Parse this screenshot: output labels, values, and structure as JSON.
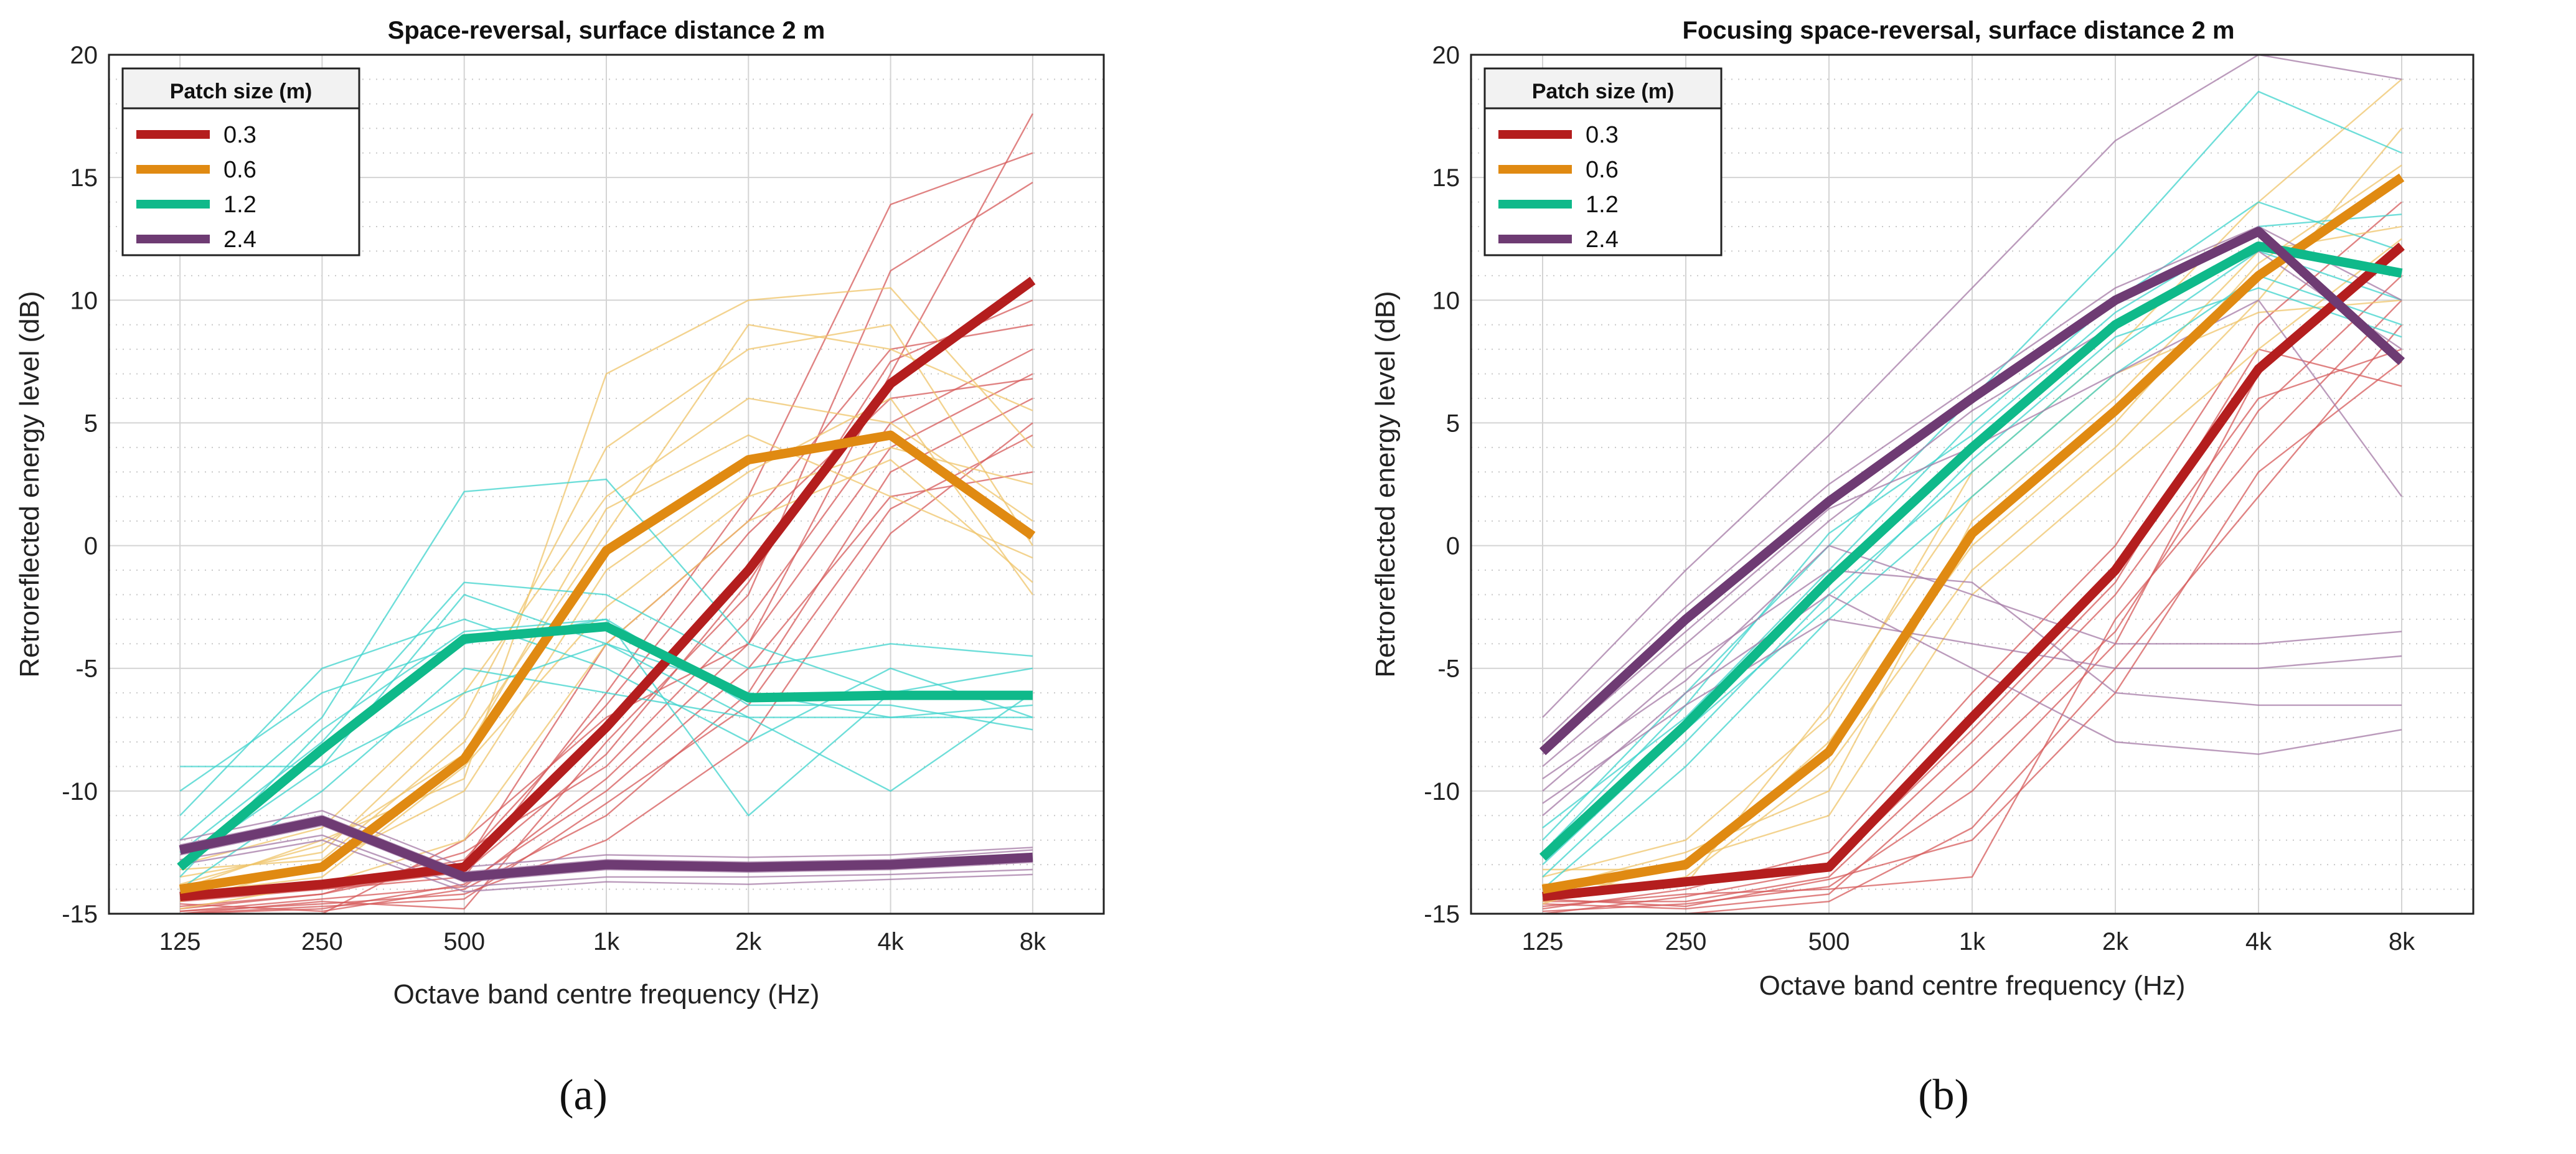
{
  "chart_data": [
    {
      "type": "line",
      "panel_label": "(a)",
      "title": "Space-reversal, surface distance 2 m",
      "xlabel": "Octave band centre frequency (Hz)",
      "ylabel": "Retroreflected energy level (dB)",
      "categories": [
        "125",
        "250",
        "500",
        "1k",
        "2k",
        "4k",
        "8k"
      ],
      "ylim": [
        -15,
        20
      ],
      "yticks": [
        "-15",
        "-10",
        "-5",
        "0",
        "5",
        "10",
        "15",
        "20"
      ],
      "grid": "major and minor",
      "legend_position": "top-left",
      "legend_title": "Patch size (m)",
      "series": [
        {
          "name": "0.3",
          "color": "#b41e1e",
          "values": [
            -14.3,
            -13.8,
            -13.1,
            -7.4,
            -1.0,
            6.6,
            10.8
          ]
        },
        {
          "name": "0.6",
          "color": "#e08a12",
          "values": [
            -14.0,
            -13.1,
            -8.7,
            -0.2,
            3.5,
            4.5,
            0.4
          ]
        },
        {
          "name": "1.2",
          "color": "#0fb98a",
          "values": [
            -13.1,
            -8.3,
            -3.8,
            -3.3,
            -6.2,
            -6.1,
            -6.1
          ]
        },
        {
          "name": "2.4",
          "color": "#6e3b73",
          "values": [
            -12.4,
            -11.2,
            -13.5,
            -13.0,
            -13.1,
            -13.0,
            -12.7
          ]
        }
      ],
      "thin_series": [
        {
          "group": "0.3",
          "color": "#d65a5a",
          "values": [
            [
              -14.9,
              -14.4,
              -13.9,
              -9.5,
              -4.0,
              7.0,
              17.6
            ],
            [
              -14.5,
              -14.0,
              -13.5,
              -6.0,
              2.0,
              13.9,
              16.0
            ],
            [
              -15.0,
              -14.5,
              -14.8,
              -8.0,
              -2.0,
              11.2,
              14.8
            ],
            [
              -14.8,
              -14.2,
              -13.0,
              -4.0,
              1.0,
              8.0,
              9.0
            ],
            [
              -15.0,
              -15.0,
              -12.0,
              -7.0,
              -4.0,
              4.0,
              7.0
            ],
            [
              -14.6,
              -14.9,
              -14.0,
              -11.0,
              -6.0,
              3.0,
              6.0
            ],
            [
              -14.7,
              -14.2,
              -12.5,
              -9.0,
              -3.0,
              5.0,
              8.0
            ],
            [
              -15.0,
              -14.8,
              -13.8,
              -10.0,
              -5.0,
              2.0,
              3.0
            ],
            [
              -14.4,
              -13.9,
              -12.8,
              -6.5,
              0.5,
              6.0,
              6.8
            ],
            [
              -14.9,
              -14.6,
              -14.2,
              -12.0,
              -8.0,
              0.5,
              5.0
            ],
            [
              -14.3,
              -14.0,
              -13.3,
              -8.5,
              -1.5,
              7.5,
              10.0
            ],
            [
              -15.0,
              -14.7,
              -14.4,
              -10.5,
              -6.5,
              1.5,
              4.5
            ]
          ]
        },
        {
          "group": "0.6",
          "color": "#efc46a",
          "values": [
            [
              -14.0,
              -12.0,
              -9.5,
              7.0,
              10.0,
              10.5,
              4.0
            ],
            [
              -13.5,
              -12.5,
              -7.0,
              4.0,
              8.0,
              9.0,
              0.0
            ],
            [
              -14.5,
              -13.0,
              -10.0,
              -1.0,
              3.0,
              6.0,
              -2.0
            ],
            [
              -13.0,
              -11.5,
              -6.0,
              2.0,
              6.0,
              5.0,
              1.0
            ],
            [
              -14.8,
              -13.8,
              -12.0,
              -4.0,
              1.0,
              3.5,
              -1.5
            ],
            [
              -13.2,
              -12.8,
              -8.0,
              0.5,
              9.0,
              8.0,
              5.5
            ],
            [
              -14.2,
              -13.5,
              -9.0,
              -2.5,
              2.0,
              4.0,
              2.5
            ],
            [
              -13.8,
              -12.2,
              -8.5,
              1.5,
              4.5,
              2.0,
              -0.5
            ]
          ]
        },
        {
          "group": "1.2",
          "color": "#3ed3cc",
          "values": [
            [
              -12.0,
              -7.0,
              2.2,
              2.7,
              -4.0,
              -6.0,
              -6.0
            ],
            [
              -13.0,
              -9.0,
              -2.0,
              -4.0,
              -7.0,
              -7.0,
              -7.0
            ],
            [
              -10.0,
              -6.0,
              -4.0,
              -3.0,
              -11.0,
              -6.0,
              -5.0
            ],
            [
              -14.0,
              -10.0,
              -5.0,
              -6.0,
              -7.0,
              -10.0,
              -6.0
            ],
            [
              -11.0,
              -5.0,
              -3.0,
              -5.0,
              -8.0,
              -5.0,
              -7.0
            ],
            [
              -12.5,
              -8.0,
              -1.5,
              -2.0,
              -5.0,
              -4.0,
              -4.5
            ],
            [
              -9.0,
              -9.0,
              -6.0,
              -4.0,
              -6.0,
              -7.0,
              -6.5
            ],
            [
              -13.5,
              -7.5,
              -3.5,
              -3.0,
              -6.5,
              -6.5,
              -7.5
            ]
          ]
        },
        {
          "group": "2.4",
          "color": "#a47aa6",
          "values": [
            [
              -12.2,
              -11.0,
              -13.3,
              -12.8,
              -12.9,
              -12.8,
              -12.4
            ],
            [
              -12.6,
              -11.4,
              -13.7,
              -13.2,
              -13.3,
              -13.2,
              -12.9
            ],
            [
              -12.8,
              -11.8,
              -13.9,
              -13.5,
              -13.5,
              -13.4,
              -13.2
            ],
            [
              -12.0,
              -10.8,
              -13.1,
              -12.6,
              -12.7,
              -12.6,
              -12.3
            ],
            [
              -13.0,
              -12.0,
              -14.1,
              -13.7,
              -13.8,
              -13.6,
              -13.4
            ]
          ]
        }
      ]
    },
    {
      "type": "line",
      "panel_label": "(b)",
      "title": "Focusing space-reversal, surface distance 2 m",
      "xlabel": "Octave band centre frequency (Hz)",
      "ylabel": "Retroreflected energy level (dB)",
      "categories": [
        "125",
        "250",
        "500",
        "1k",
        "2k",
        "4k",
        "8k"
      ],
      "ylim": [
        -15,
        20
      ],
      "yticks": [
        "-15",
        "-10",
        "-5",
        "0",
        "5",
        "10",
        "15",
        "20"
      ],
      "grid": "major and minor",
      "legend_position": "top-left",
      "legend_title": "Patch size (m)",
      "series": [
        {
          "name": "0.3",
          "color": "#b41e1e",
          "values": [
            -14.3,
            -13.7,
            -13.1,
            -7.0,
            -1.0,
            7.2,
            12.2
          ]
        },
        {
          "name": "0.6",
          "color": "#e08a12",
          "values": [
            -14.0,
            -13.0,
            -8.4,
            0.5,
            5.5,
            11.0,
            15.0
          ]
        },
        {
          "name": "1.2",
          "color": "#0fb98a",
          "values": [
            -12.7,
            -7.3,
            -1.4,
            4.0,
            9.0,
            12.2,
            11.1
          ]
        },
        {
          "name": "2.4",
          "color": "#6e3b73",
          "values": [
            -8.4,
            -3.0,
            1.8,
            6.0,
            10.0,
            12.8,
            7.5
          ]
        }
      ],
      "thin_series": [
        {
          "group": "0.3",
          "color": "#d65a5a",
          "values": [
            [
              -14.9,
              -14.6,
              -13.9,
              -10.0,
              -4.0,
              7.0,
              12.0
            ],
            [
              -14.7,
              -14.2,
              -14.0,
              -13.5,
              -3.0,
              4.0,
              10.0
            ],
            [
              -14.5,
              -14.5,
              -13.5,
              -8.0,
              -2.0,
              6.0,
              8.0
            ],
            [
              -15.0,
              -15.0,
              -14.5,
              -11.5,
              -5.0,
              2.0,
              9.0
            ],
            [
              -14.8,
              -14.0,
              -12.5,
              -6.0,
              0.0,
              9.0,
              14.0
            ],
            [
              -14.6,
              -14.8,
              -14.2,
              -9.0,
              -3.5,
              5.5,
              11.0
            ],
            [
              -15.0,
              -14.3,
              -13.2,
              -7.5,
              -1.5,
              8.0,
              6.5
            ],
            [
              -14.4,
              -14.7,
              -13.6,
              -12.0,
              -6.0,
              3.0,
              7.5
            ]
          ]
        },
        {
          "group": "0.6",
          "color": "#efc46a",
          "values": [
            [
              -13.5,
              -12.0,
              -7.0,
              3.0,
              8.0,
              14.0,
              19.0
            ],
            [
              -14.5,
              -13.5,
              -9.0,
              -1.0,
              4.0,
              10.0,
              17.0
            ],
            [
              -14.0,
              -12.5,
              -10.0,
              1.0,
              6.0,
              12.0,
              13.0
            ],
            [
              -13.8,
              -13.8,
              -6.5,
              2.0,
              7.0,
              9.5,
              10.0
            ],
            [
              -14.6,
              -12.8,
              -11.0,
              -2.0,
              3.0,
              8.0,
              12.5
            ],
            [
              -13.2,
              -13.2,
              -8.0,
              0.0,
              5.0,
              11.5,
              15.5
            ]
          ]
        },
        {
          "group": "1.2",
          "color": "#3ed3cc",
          "values": [
            [
              -12.0,
              -6.0,
              0.0,
              6.0,
              12.0,
              18.5,
              16.0
            ],
            [
              -13.5,
              -8.0,
              -2.0,
              3.0,
              8.0,
              12.0,
              10.0
            ],
            [
              -11.5,
              -7.0,
              -1.0,
              5.0,
              10.0,
              14.0,
              12.0
            ],
            [
              -14.0,
              -9.0,
              -3.0,
              2.0,
              7.0,
              11.0,
              9.0
            ],
            [
              -12.5,
              -6.5,
              0.5,
              4.5,
              9.5,
              13.0,
              13.5
            ],
            [
              -13.0,
              -7.5,
              -2.5,
              3.5,
              8.5,
              10.5,
              8.5
            ]
          ]
        },
        {
          "group": "2.4",
          "color": "#a47aa6",
          "values": [
            [
              -7.0,
              -1.0,
              4.5,
              10.5,
              16.5,
              21.0,
              19.0
            ],
            [
              -8.0,
              -2.5,
              2.5,
              6.5,
              10.5,
              13.0,
              10.0
            ],
            [
              -9.0,
              -4.0,
              1.0,
              5.5,
              9.0,
              12.0,
              8.0
            ],
            [
              -10.0,
              -5.0,
              -1.0,
              -1.5,
              -6.0,
              -6.5,
              -6.5
            ],
            [
              -11.0,
              -6.0,
              -2.0,
              -5.0,
              -8.0,
              -8.5,
              -7.5
            ],
            [
              -9.5,
              -5.5,
              0.0,
              -2.0,
              -4.0,
              -4.0,
              -3.5
            ],
            [
              -8.5,
              -3.5,
              1.5,
              4.0,
              7.0,
              10.0,
              2.0
            ],
            [
              -10.5,
              -6.5,
              -3.0,
              -4.0,
              -5.0,
              -5.0,
              -4.5
            ]
          ]
        }
      ]
    }
  ]
}
